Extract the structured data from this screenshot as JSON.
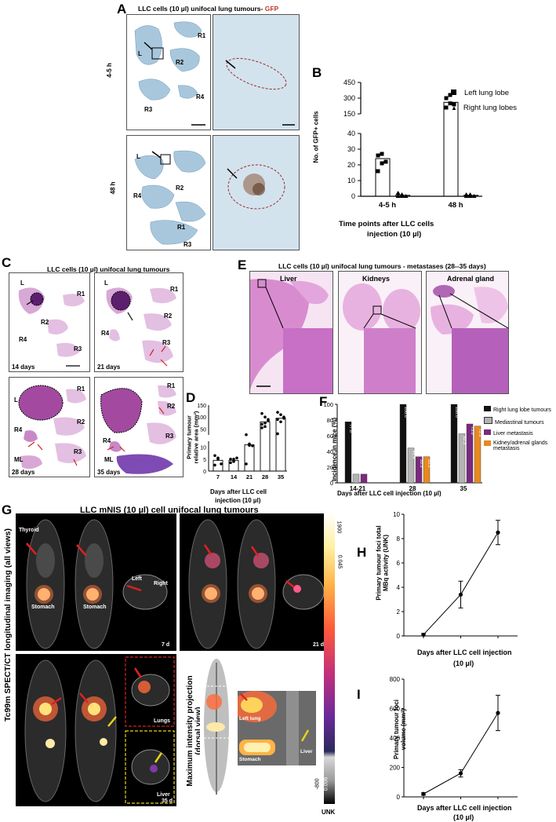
{
  "panel_a": {
    "letter": "A",
    "title": "LLC cells (10 µl) unifocal lung tumours-",
    "title_gfp": "GFP",
    "row1_time": "4-5 h",
    "row2_time": "48 h",
    "row1_lobes": [
      "L",
      "R1",
      "R2",
      "R3",
      "R4"
    ],
    "row2_lobes": [
      "L",
      "R4",
      "R2",
      "R1",
      "R3"
    ]
  },
  "panel_b": {
    "letter": "B",
    "ylabel": "No. of GFP+ cells",
    "xlabel_line1": "Time points after LLC cells",
    "xlabel_line2": "injection (10 µl)",
    "legend": [
      "Left lung lobe",
      "Right lung lobes"
    ]
  },
  "panel_c": {
    "letter": "C",
    "title": "LLC cells (10 µl) unifocal lung tumours",
    "days": [
      "14 days",
      "21 days",
      "28 days",
      "35 days"
    ],
    "lobes": [
      "L",
      "R1",
      "R2",
      "R3",
      "R4",
      "ML"
    ]
  },
  "panel_d": {
    "letter": "D",
    "ylabel_line1": "Primary tumour",
    "ylabel_line2": "relative area (mm²)",
    "xlabel_line1": "Days after LLC cell",
    "xlabel_line2": "injection (10 µl)"
  },
  "panel_e": {
    "letter": "E",
    "title": "LLC cells (10 µl) unifocal lung tumours - metastases (28--35 days)",
    "organs": [
      "Liver",
      "Kidneys",
      "Adrenal gland"
    ]
  },
  "panel_f": {
    "letter": "F",
    "ylabel": "Incidence in mice (%)",
    "xlabel": "Days after LLC cell injection (10 µl)",
    "legend": [
      "Right lung lobe tumours",
      "Mediastinal tumours",
      "Liver metastasis",
      "Kidney/adrenal glands metastasis"
    ]
  },
  "panel_g": {
    "letter": "G",
    "title": "LLC mNIS (10 µl) cell unifocal lung tumours",
    "side_label": "Tc99m SPECT/CT longitudinal imaging (all views)",
    "mip_label_line1": "Maximum intensity projection",
    "mip_label_line2": "(dorsal view)",
    "labels": {
      "thyroid": "Thyroid",
      "stomach": "Stomach",
      "left": "Left",
      "right": "Right",
      "lungs": "Lungs",
      "liver": "Liver",
      "left_lung": "Left lung",
      "d7": "7 d",
      "d21": "21 d",
      "d35": "35 d"
    },
    "colorbar_max": "1900",
    "colorbar_max2": "0.045",
    "colorbar_min": "-800",
    "colorbar_min2": "0.006",
    "unit": "UNK"
  },
  "panel_h": {
    "letter": "H",
    "ylabel_line1": "Primary tumour foci total",
    "ylabel_line2": "MBq activity (UNK)",
    "xlabel_line1": "Days after LLC cell injection",
    "xlabel_line2": "(10 µl)"
  },
  "panel_i": {
    "letter": "I",
    "ylabel_line1": "Primary tumour foci",
    "ylabel_line2": "volume (mm³)",
    "xlabel_line1": "Days after LLC cell injection",
    "xlabel_line2": "(10 µl)"
  },
  "chart_data": [
    {
      "id": "B",
      "type": "scatter",
      "title": "",
      "ylabel": "No. of GFP+ cells",
      "xlabel": "Time points after LLC cells injection (10 µl)",
      "categories": [
        "4-5 h",
        "48 h"
      ],
      "y_ticks_lower": [
        "0",
        "10",
        "20",
        "30",
        "40"
      ],
      "y_ticks_upper": [
        "150",
        "300",
        "450"
      ],
      "series": [
        {
          "name": "Left lung lobe",
          "values": [
            24,
            260
          ],
          "points": [
            [
              26,
              27,
              22,
              16,
              21
            ],
            [
              300,
              330,
              240,
              210,
              250
            ]
          ]
        },
        {
          "name": "Right lung lobes",
          "values": [
            0.6,
            0.6
          ],
          "points": [
            [
              2,
              1,
              0,
              0,
              0
            ],
            [
              1,
              1,
              0,
              0,
              0
            ]
          ]
        }
      ]
    },
    {
      "id": "D",
      "type": "bar",
      "ylabel": "Primary tumour relative area (mm²)",
      "xlabel": "Days after LLC cell injection (10 µl)",
      "categories": [
        "7",
        "14",
        "21",
        "28",
        "35"
      ],
      "y_ticks_lower": [
        "0",
        "5",
        "10"
      ],
      "y_ticks_upper": [
        "50",
        "100",
        "150"
      ],
      "values": [
        4.5,
        4.5,
        15,
        80,
        95
      ],
      "points": [
        [
          6.5,
          5,
          3,
          2.5,
          5.5
        ],
        [
          5,
          4,
          5.5,
          3.5,
          5
        ],
        [
          26,
          17,
          13,
          3,
          14
        ],
        [
          115,
          100,
          85,
          70,
          60,
          90,
          55,
          75
        ],
        [
          120,
          110,
          100,
          90,
          80,
          95,
          30
        ]
      ]
    },
    {
      "id": "F",
      "type": "bar",
      "ylabel": "Incidence in mice (%)",
      "xlabel": "Days after LLC cell injection (10 µl)",
      "categories": [
        "14-21",
        "28",
        "35"
      ],
      "ylim": [
        0,
        100
      ],
      "y_ticks": [
        "0",
        "20",
        "40",
        "60",
        "80",
        "100"
      ],
      "series": [
        {
          "name": "Right lung lobe tumours",
          "color": "#111111",
          "values": [
            77.8,
            100.0,
            100.0
          ],
          "labels": [
            "77.8",
            "100.0",
            "100.0"
          ]
        },
        {
          "name": "Mediastinal tumours",
          "color": "#b3b3b3",
          "values": [
            11.1,
            44.4,
            62.5
          ],
          "labels": [
            "",
            "44.4",
            "62.5"
          ]
        },
        {
          "name": "Liver metastasis",
          "color": "#7a2a7e",
          "values": [
            11.1,
            33.3,
            75.0
          ],
          "labels": [
            "",
            "33.3",
            "75.0"
          ]
        },
        {
          "name": "Kidney/adrenal glands metastasis",
          "color": "#e8891f",
          "values": [
            0,
            33.3,
            72.2
          ],
          "labels": [
            "",
            "33.3",
            "72.2"
          ]
        }
      ]
    },
    {
      "id": "H",
      "type": "line",
      "ylabel": "Primary tumour foci total MBq activity (UNK)",
      "xlabel": "Days after LLC cell injection (10 µl)",
      "x": [
        "7",
        "21",
        "35"
      ],
      "ylim": [
        0,
        10
      ],
      "y_ticks": [
        "0",
        "2",
        "4",
        "6",
        "8",
        "10"
      ],
      "values": [
        0.1,
        3.4,
        8.5
      ],
      "errors": [
        0.1,
        1.1,
        1.0
      ]
    },
    {
      "id": "I",
      "type": "line",
      "ylabel": "Primary tumour foci volume (mm³)",
      "xlabel": "Days after LLC cell injection (10 µl)",
      "x": [
        "7",
        "21",
        "35"
      ],
      "ylim": [
        0,
        800
      ],
      "y_ticks": [
        "0",
        "200",
        "400",
        "600",
        "800"
      ],
      "values": [
        20,
        160,
        570
      ],
      "errors": [
        8,
        25,
        120
      ]
    }
  ]
}
